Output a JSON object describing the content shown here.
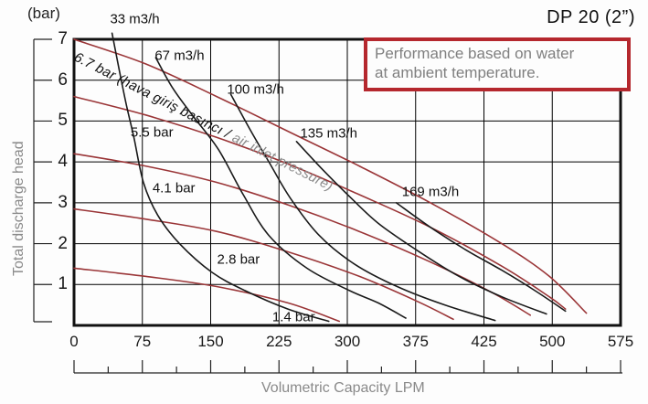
{
  "header": {
    "title": "DP 20 (2”)"
  },
  "info_box": {
    "line1": "Performance based on water",
    "line2": "at ambient temperature."
  },
  "chart_data": {
    "type": "line",
    "title": "DP 20 (2”)",
    "xlabel": "Volumetric Capacity LPM",
    "ylabel": "Total discharge head",
    "y_unit_label": "(bar)",
    "xlim": [
      0,
      575
    ],
    "ylim": [
      0,
      7
    ],
    "grid": true,
    "legend_position": "inline-labels",
    "x_tick_labels": [
      "0",
      "75",
      "150",
      "225",
      "300",
      "375",
      "425",
      "500",
      "575"
    ],
    "y_tick_labels": [
      "7",
      "6",
      "5",
      "4",
      "3",
      "2",
      "1"
    ],
    "colors": {
      "pressure_curve": "#9a3537",
      "air_curve": "#1a1a1a",
      "info_box_border": "#b5282e",
      "muted_text": "#8a8a8a"
    },
    "annotation": {
      "text_black": "6.7 bar (hava giriş basıncı /",
      "text_gray": " air inlet pressure)",
      "anchor_lpm_bar": [
        5,
        6.75
      ],
      "angle_deg": 27
    },
    "series": [
      {
        "name": "6.7 bar air inlet pressure",
        "group": "pressure",
        "label": null,
        "label_at": null,
        "points": [
          [
            0,
            7.0
          ],
          [
            75,
            6.4
          ],
          [
            150,
            5.6
          ],
          [
            225,
            4.75
          ],
          [
            300,
            3.9
          ],
          [
            375,
            3.0
          ],
          [
            450,
            2.0
          ],
          [
            500,
            1.2
          ],
          [
            539,
            0.3
          ]
        ]
      },
      {
        "name": "5.5 bar air inlet pressure",
        "group": "pressure",
        "label": "5.5 bar",
        "label_at": [
          82,
          4.72
        ],
        "points": [
          [
            0,
            5.6
          ],
          [
            75,
            5.15
          ],
          [
            150,
            4.6
          ],
          [
            225,
            3.95
          ],
          [
            300,
            3.2
          ],
          [
            375,
            2.4
          ],
          [
            450,
            1.45
          ],
          [
            500,
            0.7
          ],
          [
            517,
            0.4
          ]
        ]
      },
      {
        "name": "4.1 bar air inlet pressure",
        "group": "pressure",
        "label": "4.1 bar",
        "label_at": [
          105,
          3.35
        ],
        "points": [
          [
            0,
            4.2
          ],
          [
            75,
            3.9
          ],
          [
            150,
            3.5
          ],
          [
            225,
            2.95
          ],
          [
            300,
            2.3
          ],
          [
            375,
            1.55
          ],
          [
            440,
            0.8
          ],
          [
            480,
            0.25
          ]
        ]
      },
      {
        "name": "2.8 bar air inlet pressure",
        "group": "pressure",
        "label": "2.8 bar",
        "label_at": [
          173,
          1.62
        ],
        "points": [
          [
            0,
            2.85
          ],
          [
            75,
            2.6
          ],
          [
            150,
            2.3
          ],
          [
            225,
            1.8
          ],
          [
            300,
            1.2
          ],
          [
            360,
            0.6
          ],
          [
            399,
            0.15
          ]
        ]
      },
      {
        "name": "1.4 bar air inlet pressure",
        "group": "pressure",
        "label": "1.4 bar",
        "label_at": [
          231,
          0.2
        ],
        "points": [
          [
            0,
            1.4
          ],
          [
            75,
            1.2
          ],
          [
            150,
            0.95
          ],
          [
            225,
            0.55
          ],
          [
            279,
            0.1
          ]
        ]
      },
      {
        "name": "33 m3/h air consumption",
        "group": "air",
        "label": "33 m3/h",
        "label_at": [
          64,
          7.5
        ],
        "points": [
          [
            40,
            7.15
          ],
          [
            48,
            6.2
          ],
          [
            55,
            5.4
          ],
          [
            63,
            4.6
          ],
          [
            73,
            3.5
          ],
          [
            88,
            2.7
          ],
          [
            111,
            2.0
          ],
          [
            145,
            1.3
          ],
          [
            180,
            0.85
          ],
          [
            225,
            0.4
          ],
          [
            268,
            0.1
          ]
        ]
      },
      {
        "name": "67 m3/h air consumption",
        "group": "air",
        "label": "67 m3/h",
        "label_at": [
          111,
          6.6
        ],
        "points": [
          [
            86,
            6.55
          ],
          [
            104,
            5.8
          ],
          [
            126,
            5.1
          ],
          [
            152,
            4.3
          ],
          [
            178,
            3.2
          ],
          [
            205,
            2.2
          ],
          [
            245,
            1.4
          ],
          [
            290,
            0.85
          ],
          [
            320,
            0.55
          ],
          [
            349,
            0.18
          ]
        ]
      },
      {
        "name": "100 m3/h air consumption",
        "group": "air",
        "label": "100 m3/h",
        "label_at": [
          191,
          5.78
        ],
        "points": [
          [
            165,
            5.65
          ],
          [
            185,
            4.8
          ],
          [
            205,
            4.0
          ],
          [
            228,
            3.1
          ],
          [
            258,
            2.2
          ],
          [
            295,
            1.5
          ],
          [
            340,
            0.95
          ],
          [
            390,
            0.5
          ],
          [
            443,
            0.12
          ]
        ]
      },
      {
        "name": "135 m3/h air consumption",
        "group": "air",
        "label": "135 m3/h",
        "label_at": [
          268,
          4.7
        ],
        "points": [
          [
            234,
            4.5
          ],
          [
            262,
            3.8
          ],
          [
            290,
            3.15
          ],
          [
            320,
            2.5
          ],
          [
            360,
            1.85
          ],
          [
            405,
            1.2
          ],
          [
            450,
            0.7
          ],
          [
            497,
            0.28
          ]
        ]
      },
      {
        "name": "169 m3/h air consumption",
        "group": "air",
        "label": "169 m3/h",
        "label_at": [
          375,
          3.27
        ],
        "points": [
          [
            339,
            3.0
          ],
          [
            375,
            2.4
          ],
          [
            412,
            1.85
          ],
          [
            450,
            1.35
          ],
          [
            485,
            0.85
          ],
          [
            517,
            0.35
          ]
        ]
      }
    ]
  }
}
